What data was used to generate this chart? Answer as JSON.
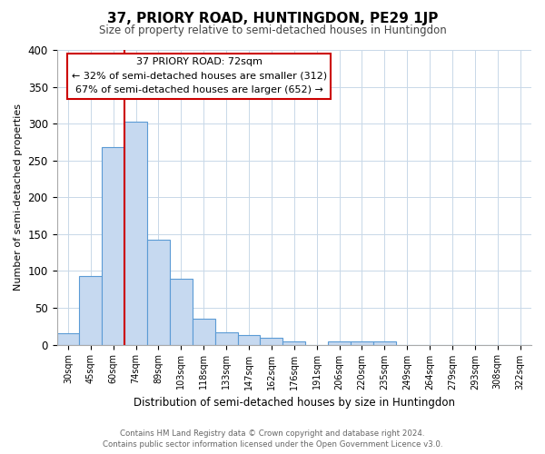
{
  "title": "37, PRIORY ROAD, HUNTINGDON, PE29 1JP",
  "subtitle": "Size of property relative to semi-detached houses in Huntingdon",
  "xlabel": "Distribution of semi-detached houses by size in Huntingdon",
  "ylabel": "Number of semi-detached properties",
  "bin_labels": [
    "30sqm",
    "45sqm",
    "60sqm",
    "74sqm",
    "89sqm",
    "103sqm",
    "118sqm",
    "133sqm",
    "147sqm",
    "162sqm",
    "176sqm",
    "191sqm",
    "206sqm",
    "220sqm",
    "235sqm",
    "249sqm",
    "264sqm",
    "279sqm",
    "293sqm",
    "308sqm",
    "322sqm"
  ],
  "bin_values": [
    15,
    93,
    268,
    303,
    142,
    90,
    35,
    17,
    13,
    9,
    5,
    0,
    4,
    4,
    4,
    0,
    0,
    0,
    0,
    0,
    0
  ],
  "bar_color": "#c6d9f0",
  "bar_edge_color": "#5b9bd5",
  "vline_color": "#cc0000",
  "annotation_box_color": "#ffffff",
  "annotation_box_edge": "#cc0000",
  "annotation_text": "37 PRIORY ROAD: 72sqm\n← 32% of semi-detached houses are smaller (312)\n67% of semi-detached houses are larger (652) →",
  "ylim": [
    0,
    400
  ],
  "yticks": [
    0,
    50,
    100,
    150,
    200,
    250,
    300,
    350,
    400
  ],
  "footer1": "Contains HM Land Registry data © Crown copyright and database right 2024.",
  "footer2": "Contains public sector information licensed under the Open Government Licence v3.0.",
  "background_color": "#ffffff",
  "grid_color": "#c8d8e8"
}
